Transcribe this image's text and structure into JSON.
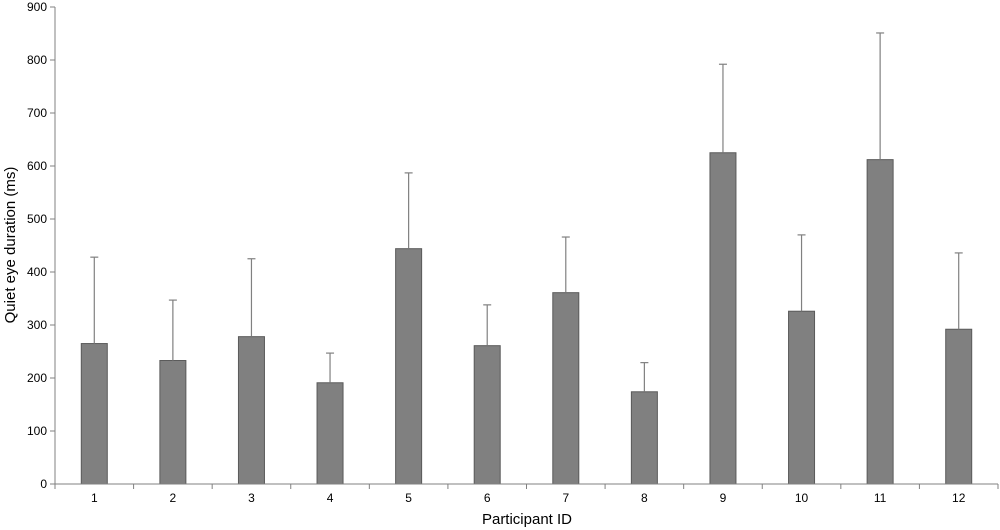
{
  "chart_data": {
    "type": "bar",
    "xlabel": "Participant ID",
    "ylabel": "Quiet eye duration (ms)",
    "categories": [
      "1",
      "2",
      "3",
      "4",
      "5",
      "6",
      "7",
      "8",
      "9",
      "10",
      "11",
      "12"
    ],
    "values": [
      265,
      233,
      278,
      191,
      444,
      261,
      361,
      174,
      625,
      326,
      612,
      292
    ],
    "error_upper": [
      428,
      347,
      425,
      247,
      587,
      338,
      466,
      229,
      792,
      470,
      851,
      436
    ],
    "ylim": [
      0,
      900
    ],
    "yticks": [
      "0",
      "100",
      "200",
      "300",
      "400",
      "500",
      "600",
      "700",
      "800",
      "900"
    ],
    "grid": false,
    "legend": "none",
    "bar_color": "#808080",
    "bar_edge_color": "#5a5a5a",
    "error_color": "#808080"
  }
}
